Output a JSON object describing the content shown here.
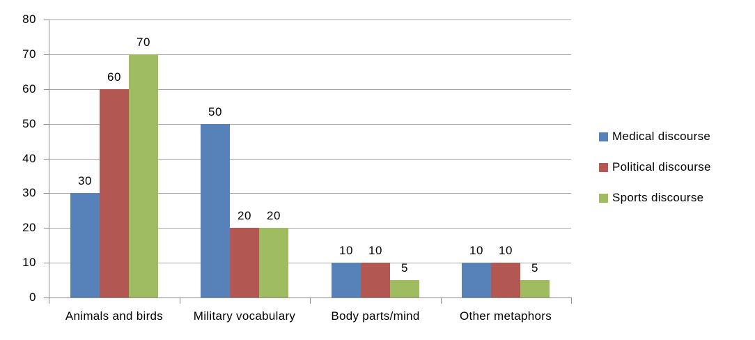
{
  "chart_data": {
    "type": "bar",
    "title": "",
    "categories": [
      "Animals and birds",
      "Military vocabulary",
      "Body parts/mind",
      "Other metaphors"
    ],
    "series": [
      {
        "name": "Medical discourse",
        "color": "#5681B9",
        "values": [
          30,
          50,
          10,
          10
        ]
      },
      {
        "name": "Political discourse",
        "color": "#B25751",
        "values": [
          60,
          20,
          10,
          10
        ]
      },
      {
        "name": "Sports discourse",
        "color": "#9FBC60",
        "values": [
          70,
          20,
          5,
          5
        ]
      }
    ],
    "ylim": [
      0,
      80
    ],
    "yticks": [
      0,
      10,
      20,
      30,
      40,
      50,
      60,
      70,
      80
    ],
    "grid": true,
    "legend_position": "right",
    "data_labels": true
  },
  "colors": {
    "background": "#FFFFFF",
    "gridline": "#A6A6A6",
    "axis": "#8C8C8C",
    "text": "#000000"
  }
}
